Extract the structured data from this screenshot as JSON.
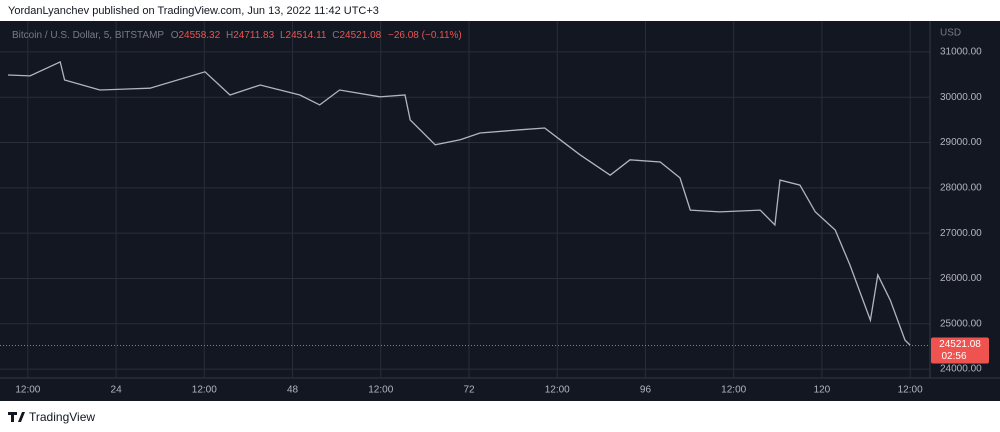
{
  "chart_data": {
    "type": "line",
    "publisher": "YordanLyanchev published on TradingView.com, Jun 13, 2022 11:42 UTC+3",
    "symbol": "Bitcoin / U.S. Dollar, 5, BITSTAMP",
    "ohlc": {
      "o_label": "O",
      "open": 24558.32,
      "h_label": "H",
      "high": 24711.83,
      "l_label": "L",
      "low": 24514.11,
      "c_label": "C",
      "close": 24521.08,
      "change": "−26.08 (−0.11%)"
    },
    "currency": "USD",
    "countdown": "02:56",
    "brand": "TradingView",
    "x": [
      9.3,
      12.3,
      16.4,
      17.0,
      21.8,
      28.6,
      36.1,
      39.5,
      43.6,
      49.0,
      51.7,
      54.4,
      59.9,
      63.3,
      64.0,
      67.4,
      70.8,
      73.5,
      78.9,
      82.3,
      84.4,
      87.1,
      91.2,
      93.9,
      98.0,
      100.7,
      102.1,
      106.1,
      111.6,
      113.6,
      114.3,
      117.0,
      119.1,
      121.8,
      123.8,
      126.6,
      127.6,
      129.3,
      131.3,
      132.0
    ],
    "series": [
      {
        "name": "BTCUSD",
        "color": "#b2b5be",
        "values": [
          30490,
          30470,
          30780,
          30380,
          30160,
          30200,
          30560,
          30050,
          30270,
          30050,
          29830,
          30160,
          30010,
          30050,
          29500,
          28950,
          29060,
          29210,
          29280,
          29320,
          29060,
          28730,
          28280,
          28620,
          28570,
          28220,
          27510,
          27470,
          27510,
          27180,
          28170,
          28060,
          27470,
          27070,
          26300,
          25080,
          26080,
          25520,
          24640,
          24530
        ]
      }
    ],
    "xlim": [
      9.3,
      134.7
    ],
    "xticks": [
      {
        "value": 12,
        "label": "12:00"
      },
      24,
      {
        "value": 36,
        "label": "12:00"
      },
      48,
      {
        "value": 60,
        "label": "12:00"
      },
      72,
      {
        "value": 84,
        "label": "12:00"
      },
      96,
      {
        "value": 108,
        "label": "12:00"
      },
      120,
      {
        "value": 132,
        "label": "12:00"
      }
    ],
    "ylim": [
      23870,
      31660
    ],
    "yticks": [
      {
        "value": 24000,
        "label": "24000.00"
      },
      {
        "value": 25000,
        "label": "25000.00"
      },
      {
        "value": 26000,
        "label": "26000.00"
      },
      {
        "value": 27000,
        "label": "27000.00"
      },
      {
        "value": 28000,
        "label": "28000.00"
      },
      {
        "value": 29000,
        "label": "29000.00"
      },
      {
        "value": 30000,
        "label": "30000.00"
      },
      {
        "value": 31000,
        "label": "31000.00"
      }
    ],
    "grid": true
  }
}
